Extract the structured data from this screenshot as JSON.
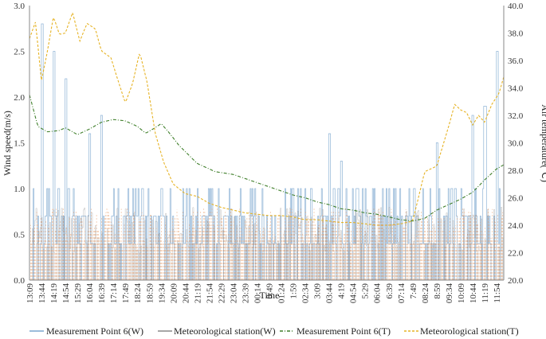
{
  "chart_data": {
    "type": "line",
    "xlabel": "Time",
    "ylabel_left": "Wind speed(m/s)",
    "ylabel_right": "Air temperature(℃)",
    "ylim_left": [
      0,
      3.0
    ],
    "ylim_right": [
      20.0,
      40.0
    ],
    "yticks_left": [
      "0.0",
      "0.5",
      "1.0",
      "1.5",
      "2.0",
      "2.5",
      "3.0"
    ],
    "yticks_right": [
      "20.0",
      "22.0",
      "24.0",
      "26.0",
      "28.0",
      "30.0",
      "32.0",
      "34.0",
      "36.0",
      "38.0",
      "40.0"
    ],
    "x_tick_labels": [
      "13:09",
      "13:44",
      "14:19",
      "14:54",
      "15:29",
      "16:04",
      "16:39",
      "17:14",
      "17:49",
      "18:24",
      "18:59",
      "19:34",
      "20:09",
      "20:44",
      "21:19",
      "21:54",
      "22:29",
      "23:04",
      "23:39",
      "00:14",
      "0:49",
      "01:24",
      "1:59",
      "02:34",
      "3:09",
      "03:44",
      "4:19",
      "04:54",
      "5:29",
      "06:04",
      "6:39",
      "07:14",
      "7:49",
      "08:24",
      "8:59",
      "09:34",
      "10:09",
      "10:44",
      "11:19",
      "11:54"
    ],
    "series": [
      {
        "name": "Measurement Point 6(W)",
        "axis": "left",
        "color": "#7aa6cf",
        "anchors": [
          [
            0,
            0.8
          ],
          [
            3,
            1.2
          ],
          [
            6,
            0.9
          ],
          [
            9,
            0.6
          ],
          [
            11,
            0.7
          ],
          [
            14,
            0.5
          ],
          [
            18,
            0.6
          ],
          [
            22,
            0.6
          ],
          [
            26,
            0.8
          ],
          [
            29,
            0.6
          ],
          [
            32,
            0.3
          ],
          [
            35,
            0.9
          ],
          [
            37,
            1.1
          ],
          [
            39,
            1.3
          ]
        ],
        "peaks": [
          [
            1,
            2.8
          ],
          [
            2,
            2.5
          ],
          [
            3,
            2.2
          ],
          [
            5,
            1.6
          ],
          [
            6,
            1.8
          ],
          [
            11,
            1.0
          ],
          [
            25,
            1.6
          ],
          [
            26,
            1.3
          ],
          [
            34,
            1.5
          ],
          [
            37,
            1.8
          ],
          [
            38,
            1.9
          ],
          [
            39,
            2.5
          ]
        ]
      },
      {
        "name": "Meteorological station(W)",
        "axis": "left",
        "color": "#8a8a8a",
        "anchors": [
          [
            0,
            0.4
          ],
          [
            39,
            0.4
          ]
        ],
        "peaks": []
      },
      {
        "name": "Measurement Point 6(T)",
        "axis": "right",
        "color": "#3f7f2a",
        "anchors": [
          [
            0,
            33.5
          ],
          [
            0.7,
            31.2
          ],
          [
            1.5,
            30.8
          ],
          [
            2.5,
            30.9
          ],
          [
            3,
            31.1
          ],
          [
            4,
            30.6
          ],
          [
            5,
            31.0
          ],
          [
            6,
            31.5
          ],
          [
            7,
            31.7
          ],
          [
            8,
            31.6
          ],
          [
            9,
            31.2
          ],
          [
            9.7,
            30.7
          ],
          [
            10.3,
            31.0
          ],
          [
            11,
            31.4
          ],
          [
            11.6,
            30.8
          ],
          [
            12.5,
            29.8
          ],
          [
            14,
            28.5
          ],
          [
            15.5,
            27.9
          ],
          [
            17,
            27.7
          ],
          [
            18,
            27.4
          ],
          [
            19,
            27.1
          ],
          [
            20,
            26.8
          ],
          [
            21,
            26.5
          ],
          [
            22,
            26.2
          ],
          [
            23,
            26.0
          ],
          [
            24,
            25.7
          ],
          [
            25,
            25.5
          ],
          [
            26,
            25.2
          ],
          [
            27,
            25.1
          ],
          [
            28,
            24.9
          ],
          [
            29,
            24.8
          ],
          [
            30,
            24.6
          ],
          [
            31,
            24.4
          ],
          [
            32,
            24.3
          ],
          [
            33,
            24.5
          ],
          [
            34,
            25.1
          ],
          [
            35,
            25.5
          ],
          [
            36,
            25.9
          ],
          [
            37,
            26.4
          ],
          [
            38,
            27.3
          ],
          [
            39,
            28.1
          ],
          [
            39.6,
            28.4
          ]
        ]
      },
      {
        "name": "Meteorological station(T)",
        "axis": "right",
        "color": "#e6b325",
        "anchors": [
          [
            0,
            37.6
          ],
          [
            0.5,
            38.8
          ],
          [
            1,
            34.5
          ],
          [
            1.5,
            36.7
          ],
          [
            2,
            39.2
          ],
          [
            2.5,
            37.9
          ],
          [
            3,
            38.0
          ],
          [
            3.6,
            39.5
          ],
          [
            4.2,
            37.4
          ],
          [
            4.8,
            38.7
          ],
          [
            5.5,
            38.3
          ],
          [
            6,
            36.7
          ],
          [
            6.8,
            36.2
          ],
          [
            7.3,
            34.8
          ],
          [
            8,
            32.9
          ],
          [
            8.6,
            34.3
          ],
          [
            9.2,
            36.6
          ],
          [
            9.8,
            34.5
          ],
          [
            10.5,
            30.7
          ],
          [
            11.2,
            28.6
          ],
          [
            12,
            27.0
          ],
          [
            13,
            26.3
          ],
          [
            14,
            26.1
          ],
          [
            15,
            25.6
          ],
          [
            16,
            25.3
          ],
          [
            17,
            25.1
          ],
          [
            18,
            24.9
          ],
          [
            19,
            24.8
          ],
          [
            20,
            24.7
          ],
          [
            21,
            24.7
          ],
          [
            22,
            24.6
          ],
          [
            23,
            24.4
          ],
          [
            24,
            24.4
          ],
          [
            25,
            24.3
          ],
          [
            26,
            24.2
          ],
          [
            27,
            24.2
          ],
          [
            28,
            24.1
          ],
          [
            29,
            24.0
          ],
          [
            30,
            24.0
          ],
          [
            31,
            24.1
          ],
          [
            32,
            24.3
          ],
          [
            33,
            27.9
          ],
          [
            34,
            28.3
          ],
          [
            35,
            31.2
          ],
          [
            35.5,
            32.8
          ],
          [
            36,
            32.4
          ],
          [
            36.5,
            32.2
          ],
          [
            37,
            31.3
          ],
          [
            37.5,
            32.0
          ],
          [
            38,
            31.5
          ],
          [
            38.6,
            32.8
          ],
          [
            39.2,
            33.6
          ],
          [
            39.6,
            34.8
          ]
        ]
      }
    ],
    "legend_labels": [
      "Measurement Point 6(W)",
      "Meteorological station(W)",
      "Measurement Point 6(T)",
      "Meteorological station(T)"
    ],
    "legend_position": "bottom"
  }
}
